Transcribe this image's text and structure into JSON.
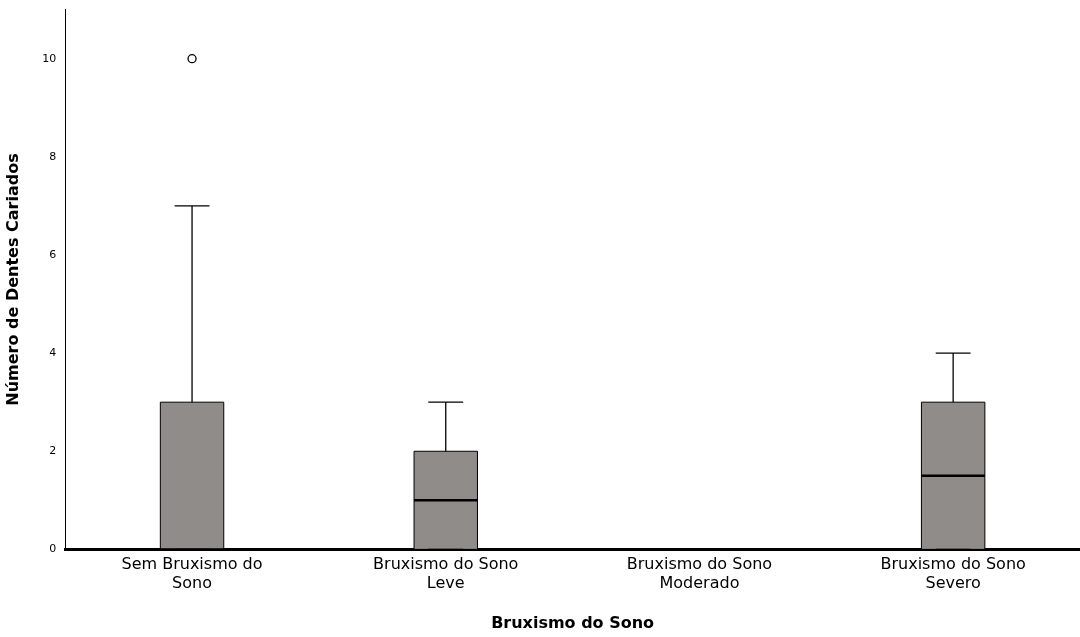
{
  "chart_data": {
    "type": "box",
    "xlabel": "Bruxismo do Sono",
    "ylabel": "Número de Dentes Cariados",
    "categories": [
      "Sem Bruxismo do Sono",
      "Bruxismo do Sono Leve",
      "Bruxismo do Sono Moderado",
      "Bruxismo do Sono Severo"
    ],
    "color": "#8f8c8a",
    "boxes": [
      {
        "low": 0,
        "q1": 0,
        "median": 0,
        "q3": 3,
        "high": 7,
        "outliers": [
          10
        ]
      },
      {
        "low": 0,
        "q1": 0,
        "median": 1,
        "q3": 2,
        "high": 3
      },
      null,
      {
        "low": 0,
        "q1": 0,
        "median": 1.5,
        "q3": 3,
        "high": 4
      }
    ],
    "ylim": [
      0,
      11
    ],
    "yticks": [
      0,
      2,
      4,
      6,
      8,
      10
    ],
    "grid": false,
    "legend": false
  }
}
